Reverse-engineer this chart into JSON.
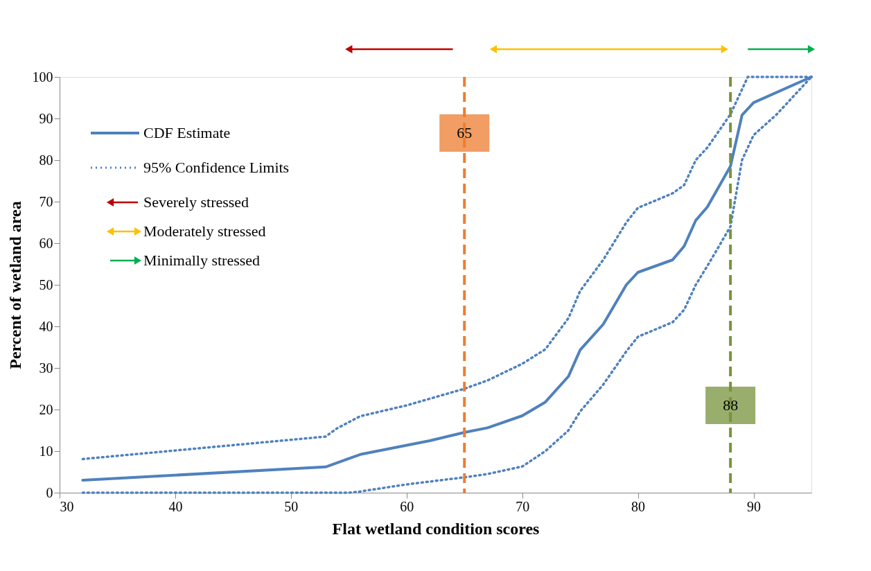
{
  "chart_data": {
    "type": "line",
    "xlabel": "Flat wetland condition scores",
    "ylabel": "Percent of wetland area",
    "xlim": [
      30,
      95
    ],
    "xticks": [
      30,
      40,
      50,
      60,
      70,
      80,
      90
    ],
    "ylim": [
      0,
      100
    ],
    "yticks": [
      0,
      10,
      20,
      30,
      40,
      50,
      60,
      70,
      80,
      90,
      100
    ],
    "grid": false,
    "legend": "top left",
    "series": [
      {
        "name": "CDF Estimate",
        "color": "#4f81bd",
        "line_style": "solid",
        "x": [
          32,
          53,
          56,
          62,
          65,
          67,
          70,
          72,
          74,
          75,
          77,
          79,
          80,
          83,
          84,
          85,
          86,
          88,
          89,
          90,
          95
        ],
        "values": [
          3,
          6.2,
          9.2,
          12.5,
          14.5,
          15.6,
          18.5,
          21.8,
          28,
          34.3,
          40.5,
          50,
          53,
          56,
          59.3,
          65.5,
          68.7,
          78.5,
          90.8,
          93.8,
          100
        ]
      },
      {
        "name": "95% Confidence Limits",
        "color": "#4f81bd",
        "line_style": "dotted",
        "x": [
          32,
          53,
          54,
          56,
          60,
          65,
          67,
          70,
          72,
          74,
          75,
          77,
          79,
          80,
          83,
          84,
          85,
          86,
          88,
          89.5,
          95
        ],
        "values": [
          8.1,
          13.5,
          15.5,
          18.4,
          21,
          25,
          27,
          31,
          34.5,
          42,
          48.5,
          56,
          65,
          68.5,
          72,
          74,
          80,
          83,
          91,
          100,
          100
        ]
      },
      {
        "color": "#4f81bd",
        "line_style": "dotted",
        "x": [
          32,
          55,
          56,
          60,
          65,
          67,
          70,
          72,
          74,
          75,
          77,
          79,
          80,
          83,
          84,
          85,
          86,
          88,
          89,
          90,
          92,
          95
        ],
        "values": [
          0,
          0,
          0.3,
          2,
          3.7,
          4.5,
          6.3,
          10,
          15,
          19.5,
          26,
          34,
          37.5,
          41,
          44,
          50,
          54.5,
          64,
          80,
          86,
          91,
          100
        ]
      }
    ],
    "ref_lines": [
      {
        "axis": "x",
        "value": 65,
        "label": "65",
        "color": "#ed7d31",
        "line_style": "dashed"
      },
      {
        "axis": "x",
        "value": 88,
        "label": "88",
        "color": "#77933c",
        "line_style": "dashed"
      }
    ],
    "annotations": [
      "Severely stressed",
      "Moderately stressed",
      "Minimally stressed"
    ]
  }
}
